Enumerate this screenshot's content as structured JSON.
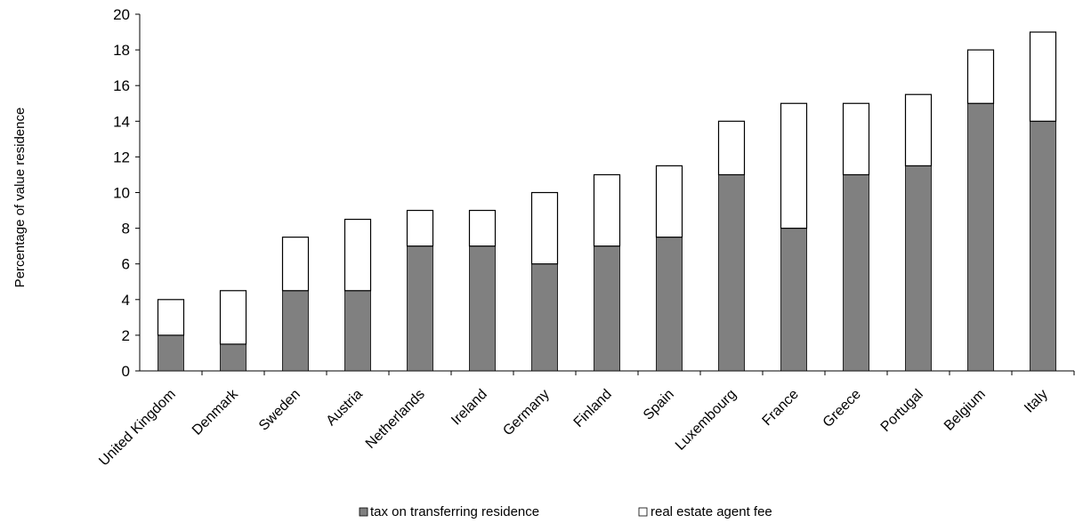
{
  "chart_data": {
    "type": "bar",
    "stacked": true,
    "title": "",
    "xlabel": "",
    "ylabel": "Percentage of value residence",
    "ylim": [
      0,
      20
    ],
    "yticks": [
      0,
      2,
      4,
      6,
      8,
      10,
      12,
      14,
      16,
      18,
      20
    ],
    "grid": false,
    "legend_position": "bottom",
    "categories": [
      "United Kingdom",
      "Denmark",
      "Sweden",
      "Austria",
      "Netherlands",
      "Ireland",
      "Germany",
      "Finland",
      "Spain",
      "Luxembourg",
      "France",
      "Greece",
      "Portugal",
      "Belgium",
      "Italy"
    ],
    "series": [
      {
        "name": "tax on transferring residence",
        "color": "#808080",
        "values": [
          2,
          1.5,
          4.5,
          4.5,
          7,
          7,
          6,
          7,
          7.5,
          11,
          8,
          11,
          11.5,
          15,
          14
        ]
      },
      {
        "name": "real estate agent fee",
        "color": "#ffffff",
        "values": [
          2,
          3,
          3,
          4,
          2,
          2,
          4,
          4,
          4,
          3,
          7,
          4,
          4,
          3,
          5
        ]
      }
    ]
  }
}
